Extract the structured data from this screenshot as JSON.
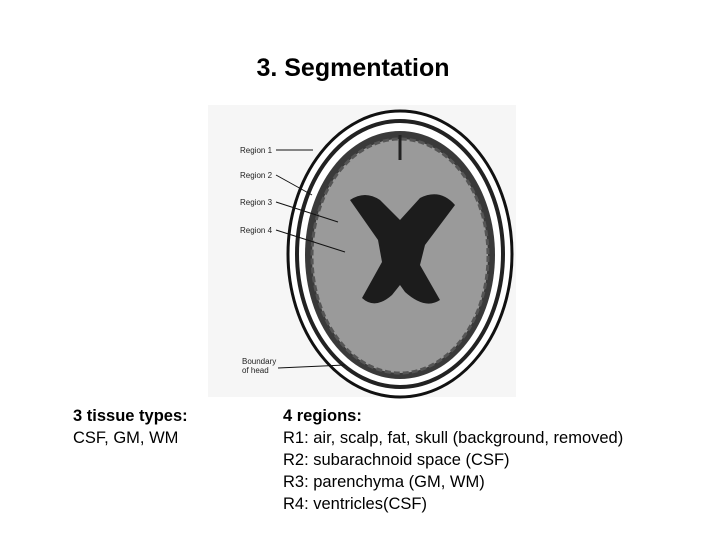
{
  "title": "3. Segmentation",
  "figure": {
    "labels": [
      "Region 1",
      "Region 2",
      "Region 3",
      "Region 4"
    ],
    "boundary": [
      "Boundary",
      "of head"
    ]
  },
  "left": {
    "heading": "3 tissue types:",
    "lines": [
      "CSF, GM, WM"
    ]
  },
  "right": {
    "heading": "4 regions:",
    "lines": [
      "R1: air, scalp, fat, skull  (background, removed)",
      "R2: subarachnoid space (CSF)",
      "R3: parenchyma (GM, WM)",
      "R4: ventricles(CSF)"
    ]
  }
}
